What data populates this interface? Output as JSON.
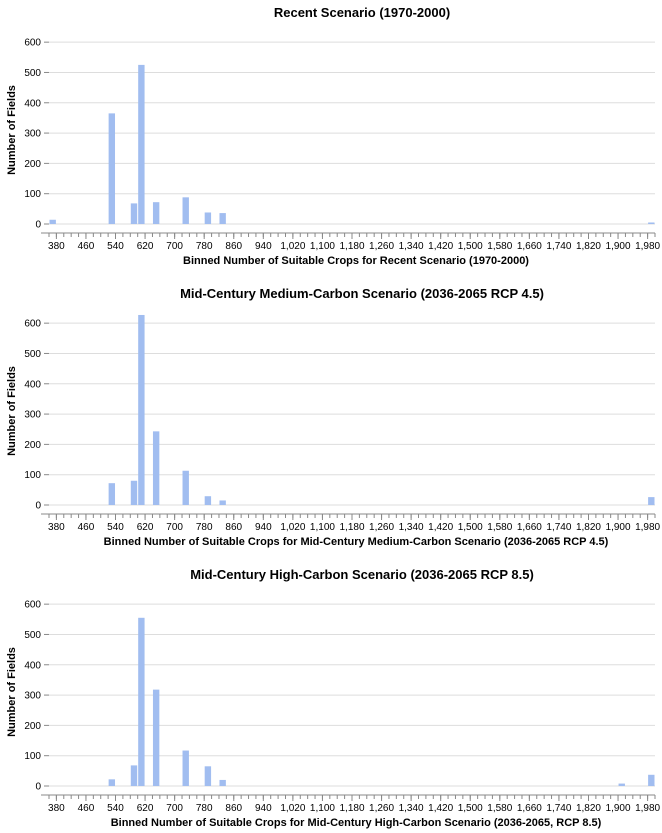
{
  "colors": {
    "bar": "#a1bdf0"
  },
  "chart_data": [
    {
      "type": "bar",
      "title": "Recent Scenario (1970-2000)",
      "xlabel": "Binned Number of Suitable Crops for Recent Scenario (1970-2000)",
      "ylabel": "Number of Fields",
      "xlim": [
        360,
        2000
      ],
      "ylim": [
        0,
        650
      ],
      "x_ticks": [
        "380",
        "460",
        "540",
        "620",
        "700",
        "780",
        "860",
        "940",
        "1,020",
        "1,100",
        "1,180",
        "1,260",
        "1,340",
        "1,420",
        "1,500",
        "1,580",
        "1,660",
        "1,740",
        "1,820",
        "1,900",
        "1,980"
      ],
      "y_ticks": [
        "0",
        "100",
        "200",
        "300",
        "400",
        "500",
        "600"
      ],
      "bin_width": 20,
      "bars": [
        {
          "x": 360,
          "y": 14
        },
        {
          "x": 520,
          "y": 365
        },
        {
          "x": 580,
          "y": 68
        },
        {
          "x": 600,
          "y": 525
        },
        {
          "x": 640,
          "y": 72
        },
        {
          "x": 720,
          "y": 88
        },
        {
          "x": 780,
          "y": 38
        },
        {
          "x": 820,
          "y": 36
        },
        {
          "x": 1980,
          "y": 5
        }
      ]
    },
    {
      "type": "bar",
      "title": "Mid-Century Medium-Carbon Scenario (2036-2065 RCP 4.5)",
      "xlabel": "Binned Number of Suitable Crops for Mid-Century Medium-Carbon Scenario (2036-2065 RCP 4.5)",
      "ylabel": "Number of Fields",
      "xlim": [
        360,
        2000
      ],
      "ylim": [
        0,
        650
      ],
      "x_ticks": [
        "380",
        "460",
        "540",
        "620",
        "700",
        "780",
        "860",
        "940",
        "1,020",
        "1,100",
        "1,180",
        "1,260",
        "1,340",
        "1,420",
        "1,500",
        "1,580",
        "1,660",
        "1,740",
        "1,820",
        "1,900",
        "1,980"
      ],
      "y_ticks": [
        "0",
        "100",
        "200",
        "300",
        "400",
        "500",
        "600"
      ],
      "bin_width": 20,
      "bars": [
        {
          "x": 520,
          "y": 72
        },
        {
          "x": 580,
          "y": 80
        },
        {
          "x": 600,
          "y": 627
        },
        {
          "x": 640,
          "y": 243
        },
        {
          "x": 720,
          "y": 113
        },
        {
          "x": 780,
          "y": 29
        },
        {
          "x": 820,
          "y": 15
        },
        {
          "x": 1980,
          "y": 26
        }
      ]
    },
    {
      "type": "bar",
      "title": "Mid-Century High-Carbon Scenario (2036-2065 RCP 8.5)",
      "xlabel": "Binned Number of Suitable Crops for Mid-Century High-Carbon Scenario (2036-2065, RCP 8.5)",
      "ylabel": "Number of Fields",
      "xlim": [
        360,
        2000
      ],
      "ylim": [
        0,
        650
      ],
      "x_ticks": [
        "380",
        "460",
        "540",
        "620",
        "700",
        "780",
        "860",
        "940",
        "1,020",
        "1,100",
        "1,180",
        "1,260",
        "1,340",
        "1,420",
        "1,500",
        "1,580",
        "1,660",
        "1,740",
        "1,820",
        "1,900",
        "1,980"
      ],
      "y_ticks": [
        "0",
        "100",
        "200",
        "300",
        "400",
        "500",
        "600"
      ],
      "bin_width": 20,
      "bars": [
        {
          "x": 520,
          "y": 22
        },
        {
          "x": 580,
          "y": 68
        },
        {
          "x": 600,
          "y": 555
        },
        {
          "x": 640,
          "y": 318
        },
        {
          "x": 720,
          "y": 117
        },
        {
          "x": 780,
          "y": 65
        },
        {
          "x": 820,
          "y": 20
        },
        {
          "x": 1900,
          "y": 8
        },
        {
          "x": 1980,
          "y": 37
        }
      ]
    }
  ]
}
